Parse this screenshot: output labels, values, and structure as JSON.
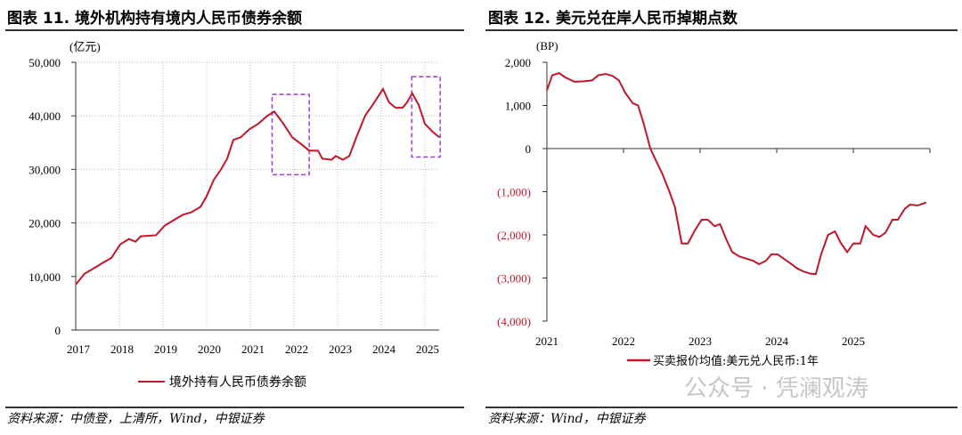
{
  "left": {
    "title": "图表 11. 境外机构持有境内人民币债券余额",
    "source": "资料来源：中债登，上清所，Wind，中银证券"
  },
  "right": {
    "title": "图表 12. 美元兑在岸人民币掉期点数",
    "source": "资料来源：Wind，中银证券"
  },
  "watermark": "公众号 · 凭澜观涛",
  "colors": {
    "line": "#c0172c",
    "box": "#9b3fd1",
    "negative": "#c0172c"
  },
  "chart_data": [
    {
      "type": "line",
      "title": "境外机构持有境内人民币债券余额",
      "ylabel": "(亿元)",
      "ylim": [
        0,
        50000
      ],
      "xlim": [
        2017,
        2025.6
      ],
      "grid": true,
      "legend": "bottom",
      "yticks": [
        0,
        10000,
        20000,
        30000,
        40000,
        50000
      ],
      "ytick_labels": [
        "0",
        "10,000",
        "20,000",
        "30,000",
        "40,000",
        "50,000"
      ],
      "xticks": [
        2017,
        2018,
        2019,
        2020,
        2021,
        2022,
        2023,
        2024,
        2025
      ],
      "xtick_labels": [
        "2017",
        "2018",
        "2019",
        "2020",
        "2021",
        "2022",
        "2023",
        "2024",
        "2025"
      ],
      "highlight_boxes": [
        {
          "x": [
            2021.5,
            2022.35
          ],
          "y": [
            29000,
            44000
          ]
        },
        {
          "x": [
            2024.7,
            2025.35
          ],
          "y": [
            32300,
            47300
          ]
        }
      ],
      "series": [
        {
          "name": "境外持有人民币债券余额",
          "x": [
            2017.0,
            2017.2,
            2017.41,
            2017.61,
            2017.82,
            2018.02,
            2018.22,
            2018.37,
            2018.49,
            2018.84,
            2019.04,
            2019.24,
            2019.45,
            2019.65,
            2019.86,
            2020.0,
            2020.16,
            2020.33,
            2020.47,
            2020.61,
            2020.78,
            2020.98,
            2021.18,
            2021.39,
            2021.55,
            2021.76,
            2021.96,
            2022.2,
            2022.35,
            2022.55,
            2022.65,
            2022.86,
            2022.96,
            2023.12,
            2023.27,
            2023.43,
            2023.63,
            2023.84,
            2024.04,
            2024.18,
            2024.33,
            2024.49,
            2024.59,
            2024.71,
            2024.86,
            2025.0,
            2025.18,
            2025.33
          ],
          "values": [
            8500,
            10500,
            11500,
            12500,
            13500,
            16000,
            17000,
            16500,
            17500,
            17700,
            19500,
            20500,
            21500,
            22000,
            23000,
            25000,
            28000,
            30000,
            32000,
            35500,
            36000,
            37500,
            38500,
            40000,
            40800,
            38500,
            36000,
            34500,
            33500,
            33500,
            32000,
            31800,
            32500,
            31800,
            32500,
            36000,
            40000,
            42500,
            45000,
            42500,
            41500,
            41500,
            42500,
            44200,
            42000,
            38500,
            37000,
            36000
          ]
        }
      ]
    },
    {
      "type": "line",
      "title": "美元兑在岸人民币掉期点数",
      "ylabel": "(BP)",
      "ylim": [
        -4000,
        2000
      ],
      "xlim": [
        2021,
        2026
      ],
      "grid": false,
      "legend": "bottom",
      "yticks": [
        -4000,
        -3000,
        -2000,
        -1000,
        0,
        1000,
        2000
      ],
      "ytick_labels": [
        "(4,000)",
        "(3,000)",
        "(2,000)",
        "(1,000)",
        "0",
        "1,000",
        "2,000"
      ],
      "xticks": [
        2021,
        2022,
        2023,
        2024,
        2025
      ],
      "xtick_labels": [
        "2021",
        "2022",
        "2023",
        "2024",
        "2025"
      ],
      "series": [
        {
          "name": "买卖报价均值:美元兑人民币:1年",
          "x": [
            2021.0,
            2021.07,
            2021.16,
            2021.24,
            2021.36,
            2021.48,
            2021.59,
            2021.67,
            2021.77,
            2021.86,
            2021.94,
            2022.02,
            2022.12,
            2022.19,
            2022.26,
            2022.35,
            2022.43,
            2022.51,
            2022.6,
            2022.67,
            2022.76,
            2022.84,
            2022.93,
            2023.02,
            2023.1,
            2023.19,
            2023.26,
            2023.34,
            2023.42,
            2023.51,
            2023.6,
            2023.69,
            2023.77,
            2023.86,
            2023.93,
            2024.01,
            2024.09,
            2024.17,
            2024.27,
            2024.35,
            2024.44,
            2024.51,
            2024.58,
            2024.67,
            2024.76,
            2024.84,
            2024.92,
            2025.0,
            2025.09,
            2025.16,
            2025.26,
            2025.34,
            2025.42,
            2025.51,
            2025.58,
            2025.67,
            2025.74,
            2025.84,
            2025.95
          ],
          "values": [
            1350,
            1700,
            1750,
            1650,
            1550,
            1560,
            1580,
            1700,
            1730,
            1680,
            1580,
            1300,
            1050,
            1000,
            600,
            0,
            -300,
            -600,
            -1000,
            -1350,
            -2200,
            -2200,
            -1900,
            -1650,
            -1650,
            -1800,
            -1750,
            -2100,
            -2400,
            -2500,
            -2550,
            -2600,
            -2680,
            -2600,
            -2450,
            -2450,
            -2550,
            -2650,
            -2780,
            -2850,
            -2900,
            -2910,
            -2450,
            -2000,
            -1920,
            -2200,
            -2400,
            -2200,
            -2200,
            -1800,
            -2000,
            -2050,
            -1950,
            -1650,
            -1650,
            -1400,
            -1300,
            -1320,
            -1250
          ]
        }
      ]
    }
  ]
}
